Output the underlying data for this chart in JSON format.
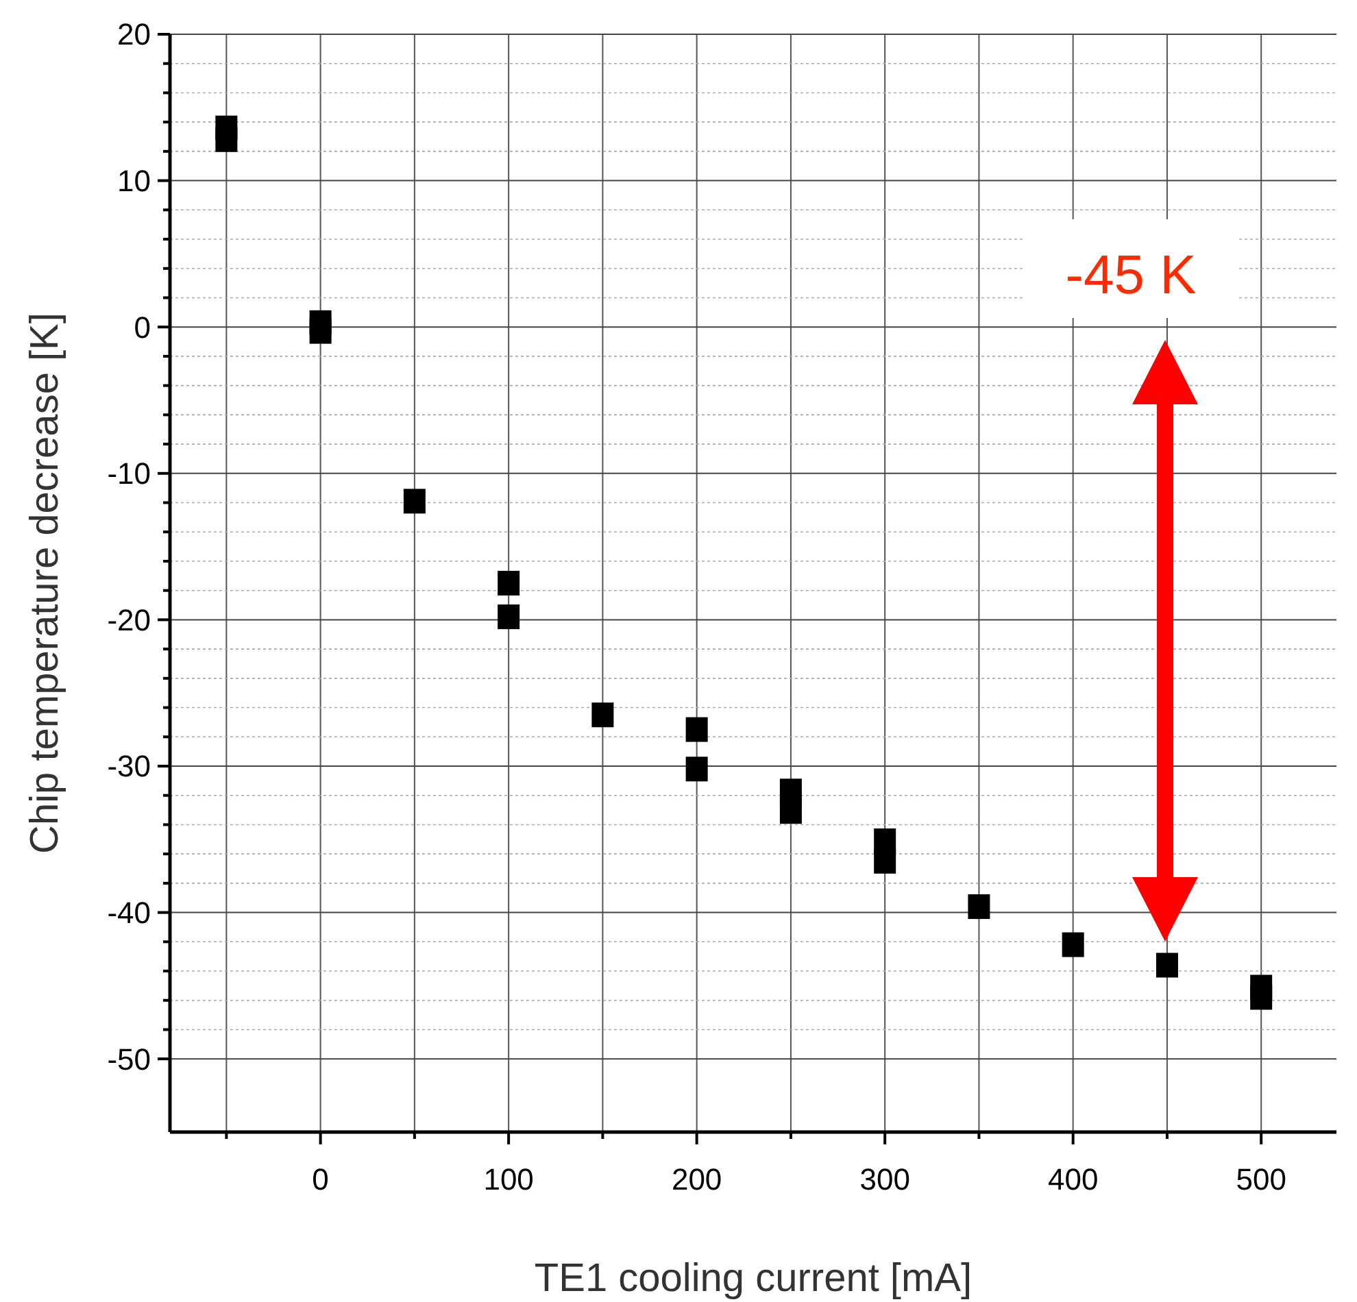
{
  "chart_data": {
    "type": "scatter",
    "xlabel": "TE1 cooling current [mA]",
    "ylabel": "Chip temperature decrease [K]",
    "x": [
      -50,
      -50,
      0,
      0,
      50,
      100,
      100,
      150,
      200,
      200,
      250,
      250,
      300,
      300,
      350,
      400,
      450,
      500,
      500
    ],
    "values": [
      13.6,
      12.8,
      0.3,
      -0.3,
      -11.9,
      -17.5,
      -19.8,
      -26.5,
      -27.5,
      -30.2,
      -31.7,
      -33.1,
      -35.1,
      -36.5,
      -39.6,
      -42.2,
      -43.6,
      -45.1,
      -45.8
    ],
    "color": "#000000",
    "marker": "square",
    "grid": true,
    "xlim": [
      -80,
      540
    ],
    "ylim": [
      -55,
      20
    ],
    "xticks": [
      {
        "value": -50,
        "label": null
      },
      0,
      {
        "value": 50,
        "label": null
      },
      100,
      {
        "value": 150,
        "label": null
      },
      200,
      {
        "value": 250,
        "label": null
      },
      300,
      {
        "value": 350,
        "label": null
      },
      400,
      {
        "value": 450,
        "label": null
      },
      500
    ],
    "yticks": [
      -50,
      {
        "value": -48,
        "label": null
      },
      {
        "value": -46,
        "label": null
      },
      {
        "value": -44,
        "label": null
      },
      {
        "value": -42,
        "label": null
      },
      -40,
      {
        "value": -38,
        "label": null
      },
      {
        "value": -36,
        "label": null
      },
      {
        "value": -34,
        "label": null
      },
      {
        "value": -32,
        "label": null
      },
      -30,
      {
        "value": -28,
        "label": null
      },
      {
        "value": -26,
        "label": null
      },
      {
        "value": -24,
        "label": null
      },
      {
        "value": -22,
        "label": null
      },
      -20,
      {
        "value": -18,
        "label": null
      },
      {
        "value": -16,
        "label": null
      },
      {
        "value": -14,
        "label": null
      },
      {
        "value": -12,
        "label": null
      },
      -10,
      {
        "value": -8,
        "label": null
      },
      {
        "value": -6,
        "label": null
      },
      {
        "value": -4,
        "label": null
      },
      {
        "value": -2,
        "label": null
      },
      0,
      {
        "value": 2,
        "label": null
      },
      {
        "value": 4,
        "label": null
      },
      {
        "value": 6,
        "label": null
      },
      {
        "value": 8,
        "label": null
      },
      10,
      {
        "value": 12,
        "label": null
      },
      {
        "value": 14,
        "label": null
      },
      {
        "value": 16,
        "label": null
      },
      {
        "value": 18,
        "label": null
      },
      20
    ],
    "annotations": [
      "-45 K"
    ]
  }
}
